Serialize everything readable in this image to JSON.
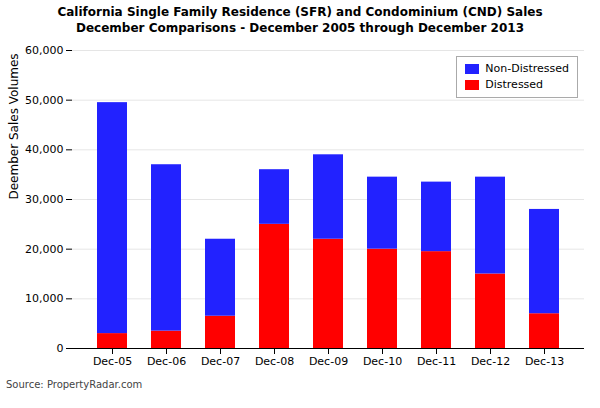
{
  "chart_data": {
    "type": "bar",
    "stacked": true,
    "title": "California Single Family Residence (SFR) and Condominium (CND) Sales",
    "subtitle": "December Comparisons - December 2005 through December 2013",
    "ylabel": "Deember Sales Volumes",
    "categories": [
      "Dec-05",
      "Dec-06",
      "Dec-07",
      "Dec-08",
      "Dec-09",
      "Dec-10",
      "Dec-11",
      "Dec-12",
      "Dec-13"
    ],
    "series": [
      {
        "name": "Distressed",
        "color": "#ff0000",
        "values": [
          3000,
          3500,
          6500,
          25000,
          22000,
          20000,
          19500,
          15000,
          7000
        ]
      },
      {
        "name": "Non-Distressed",
        "color": "#2222ff",
        "values": [
          46500,
          33500,
          15500,
          11000,
          17000,
          14500,
          14000,
          19500,
          21000
        ]
      }
    ],
    "ylim": [
      0,
      60000
    ],
    "yticks": [
      0,
      {
        "value": 10000,
        "label": "10,000"
      },
      {
        "value": 20000,
        "label": "20,000"
      },
      {
        "value": 30000,
        "label": "30,000"
      },
      {
        "value": 40000,
        "label": "40,000"
      },
      {
        "value": 50000,
        "label": "50,000"
      },
      {
        "value": 60000,
        "label": "60,000"
      }
    ],
    "grid": true,
    "legend": "upper right",
    "source": "Source: PropertyRadar.com"
  }
}
